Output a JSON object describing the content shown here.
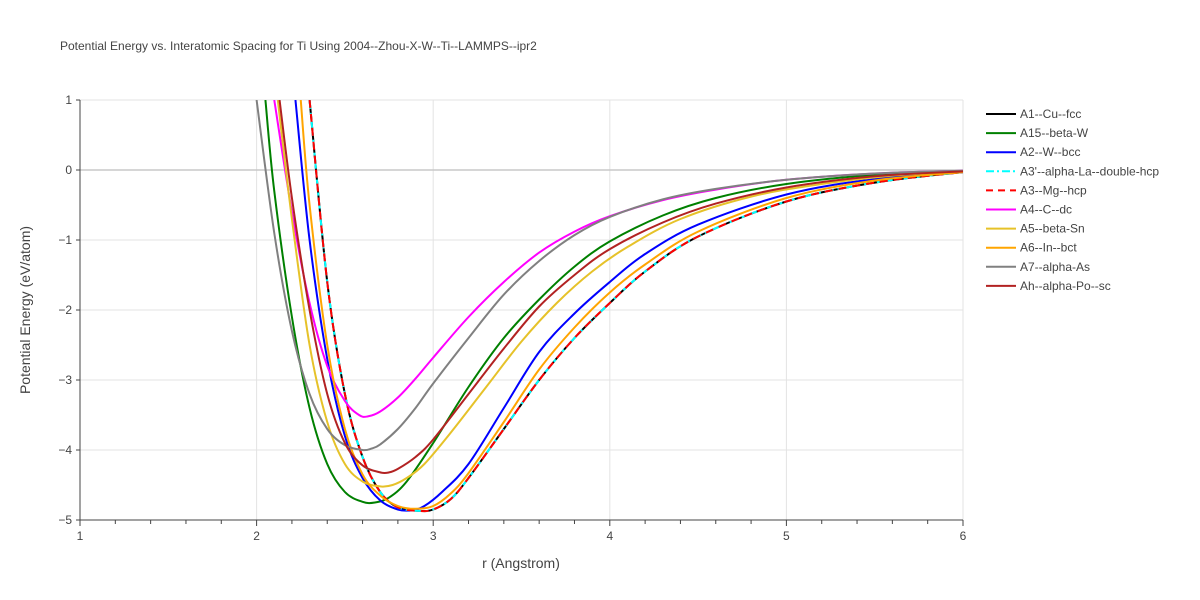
{
  "chart_data": {
    "type": "line",
    "title": "Potential Energy vs. Interatomic Spacing for Ti Using 2004--Zhou-X-W--Ti--LAMMPS--ipr2",
    "xlabel": "r (Angstrom)",
    "ylabel": "Potential Energy (eV/atom)",
    "xlim": [
      1,
      6
    ],
    "ylim": [
      -5,
      1
    ],
    "xticks": [
      1,
      2,
      3,
      4,
      5,
      6
    ],
    "yticks": [
      1,
      0,
      -1,
      -2,
      -3,
      -4,
      -5
    ],
    "xtick_labels": [
      "1",
      "2",
      "3",
      "4",
      "5",
      "6"
    ],
    "ytick_labels": [
      "1",
      "0",
      "−1",
      "−2",
      "−3",
      "−4",
      "−5"
    ],
    "grid": true,
    "legend_position": "right",
    "series": [
      {
        "name": "A1--Cu--fcc",
        "color": "#000000",
        "dash": "solid",
        "x": [
          2.3,
          2.4,
          2.5,
          2.6,
          2.7,
          2.8,
          2.92,
          3.0,
          3.1,
          3.2,
          3.4,
          3.6,
          3.8,
          4.0,
          4.2,
          4.5,
          5.0,
          5.5,
          6.0
        ],
        "y": [
          1.0,
          -1.6,
          -3.2,
          -4.1,
          -4.6,
          -4.82,
          -4.87,
          -4.85,
          -4.7,
          -4.4,
          -3.7,
          -3.0,
          -2.4,
          -1.9,
          -1.45,
          -0.95,
          -0.45,
          -0.18,
          -0.03
        ]
      },
      {
        "name": "A15--beta-W",
        "color": "#008000",
        "dash": "solid",
        "x": [
          2.05,
          2.1,
          2.2,
          2.3,
          2.4,
          2.5,
          2.6,
          2.67,
          2.75,
          2.85,
          3.0,
          3.2,
          3.4,
          3.6,
          3.8,
          4.0,
          4.3,
          4.6,
          5.0,
          5.5,
          6.0
        ],
        "y": [
          1.0,
          -0.3,
          -2.1,
          -3.4,
          -4.2,
          -4.6,
          -4.74,
          -4.75,
          -4.68,
          -4.45,
          -3.9,
          -3.1,
          -2.4,
          -1.85,
          -1.38,
          -1.02,
          -0.65,
          -0.4,
          -0.2,
          -0.07,
          -0.02
        ]
      },
      {
        "name": "A2--W--bcc",
        "color": "#0000ff",
        "dash": "solid",
        "x": [
          2.22,
          2.3,
          2.4,
          2.5,
          2.6,
          2.7,
          2.8,
          2.88,
          2.95,
          3.05,
          3.2,
          3.4,
          3.6,
          3.8,
          4.0,
          4.2,
          4.5,
          5.0,
          5.5,
          6.0
        ],
        "y": [
          1.0,
          -1.0,
          -2.7,
          -3.8,
          -4.4,
          -4.72,
          -4.85,
          -4.86,
          -4.8,
          -4.6,
          -4.2,
          -3.4,
          -2.6,
          -2.05,
          -1.6,
          -1.2,
          -0.78,
          -0.35,
          -0.13,
          -0.03
        ]
      },
      {
        "name": "A3'--alpha-La--double-hcp",
        "color": "#00ffff",
        "dash": "dashdot",
        "x": [
          2.3,
          2.4,
          2.5,
          2.6,
          2.7,
          2.8,
          2.92,
          3.0,
          3.1,
          3.2,
          3.4,
          3.6,
          3.8,
          4.0,
          4.2,
          4.5,
          5.0,
          5.5,
          6.0
        ],
        "y": [
          1.0,
          -1.6,
          -3.2,
          -4.1,
          -4.6,
          -4.82,
          -4.87,
          -4.85,
          -4.7,
          -4.4,
          -3.7,
          -3.0,
          -2.4,
          -1.9,
          -1.45,
          -0.95,
          -0.45,
          -0.18,
          -0.03
        ]
      },
      {
        "name": "A3--Mg--hcp",
        "color": "#ff0000",
        "dash": "dash",
        "x": [
          2.3,
          2.4,
          2.5,
          2.6,
          2.7,
          2.8,
          2.92,
          3.0,
          3.1,
          3.2,
          3.4,
          3.6,
          3.8,
          4.0,
          4.2,
          4.5,
          5.0,
          5.5,
          6.0
        ],
        "y": [
          1.0,
          -1.6,
          -3.2,
          -4.1,
          -4.6,
          -4.82,
          -4.87,
          -4.85,
          -4.7,
          -4.4,
          -3.7,
          -3.0,
          -2.4,
          -1.9,
          -1.45,
          -0.95,
          -0.45,
          -0.18,
          -0.03
        ]
      },
      {
        "name": "A4--C--dc",
        "color": "#ff00ff",
        "dash": "solid",
        "x": [
          2.1,
          2.2,
          2.3,
          2.4,
          2.5,
          2.58,
          2.63,
          2.7,
          2.8,
          2.9,
          3.0,
          3.2,
          3.4,
          3.6,
          3.8,
          4.0,
          4.3,
          4.6,
          5.0,
          5.5,
          6.0
        ],
        "y": [
          1.0,
          -0.6,
          -1.9,
          -2.8,
          -3.3,
          -3.5,
          -3.52,
          -3.45,
          -3.25,
          -2.98,
          -2.68,
          -2.1,
          -1.6,
          -1.18,
          -0.88,
          -0.66,
          -0.43,
          -0.28,
          -0.14,
          -0.05,
          -0.01
        ]
      },
      {
        "name": "A5--beta-Sn",
        "color": "#e6c229",
        "dash": "solid",
        "x": [
          2.12,
          2.2,
          2.3,
          2.4,
          2.5,
          2.6,
          2.7,
          2.77,
          2.85,
          2.95,
          3.1,
          3.3,
          3.5,
          3.7,
          3.9,
          4.1,
          4.4,
          4.8,
          5.2,
          5.6,
          6.0
        ],
        "y": [
          1.0,
          -0.7,
          -2.5,
          -3.6,
          -4.2,
          -4.45,
          -4.52,
          -4.5,
          -4.4,
          -4.2,
          -3.75,
          -3.1,
          -2.45,
          -1.9,
          -1.45,
          -1.1,
          -0.7,
          -0.38,
          -0.2,
          -0.08,
          -0.02
        ]
      },
      {
        "name": "A6--In--bct",
        "color": "#ffa500",
        "dash": "solid",
        "x": [
          2.25,
          2.3,
          2.4,
          2.5,
          2.6,
          2.7,
          2.8,
          2.9,
          3.0,
          3.1,
          3.2,
          3.4,
          3.6,
          3.8,
          4.0,
          4.2,
          4.5,
          5.0,
          5.5,
          6.0
        ],
        "y": [
          1.0,
          -0.5,
          -2.5,
          -3.7,
          -4.35,
          -4.65,
          -4.8,
          -4.84,
          -4.8,
          -4.62,
          -4.33,
          -3.6,
          -2.85,
          -2.25,
          -1.75,
          -1.35,
          -0.88,
          -0.4,
          -0.15,
          -0.03
        ]
      },
      {
        "name": "A7--alpha-As",
        "color": "#808080",
        "dash": "solid",
        "x": [
          2.0,
          2.1,
          2.2,
          2.3,
          2.4,
          2.5,
          2.6,
          2.65,
          2.7,
          2.8,
          2.9,
          3.0,
          3.2,
          3.4,
          3.6,
          3.8,
          4.0,
          4.3,
          4.6,
          5.0,
          5.5,
          6.0
        ],
        "y": [
          1.0,
          -0.9,
          -2.3,
          -3.2,
          -3.7,
          -3.93,
          -4.0,
          -3.98,
          -3.92,
          -3.7,
          -3.4,
          -3.05,
          -2.4,
          -1.78,
          -1.3,
          -0.93,
          -0.67,
          -0.42,
          -0.27,
          -0.14,
          -0.05,
          -0.01
        ]
      },
      {
        "name": "Ah--alpha-Po--sc",
        "color": "#b22222",
        "dash": "solid",
        "x": [
          2.13,
          2.2,
          2.3,
          2.4,
          2.5,
          2.6,
          2.7,
          2.75,
          2.8,
          2.9,
          3.0,
          3.2,
          3.4,
          3.6,
          3.8,
          4.0,
          4.3,
          4.6,
          5.0,
          5.5,
          6.0
        ],
        "y": [
          1.0,
          -0.4,
          -2.0,
          -3.2,
          -3.9,
          -4.22,
          -4.32,
          -4.32,
          -4.27,
          -4.1,
          -3.85,
          -3.2,
          -2.55,
          -1.95,
          -1.5,
          -1.13,
          -0.75,
          -0.48,
          -0.25,
          -0.09,
          -0.02
        ]
      }
    ]
  }
}
